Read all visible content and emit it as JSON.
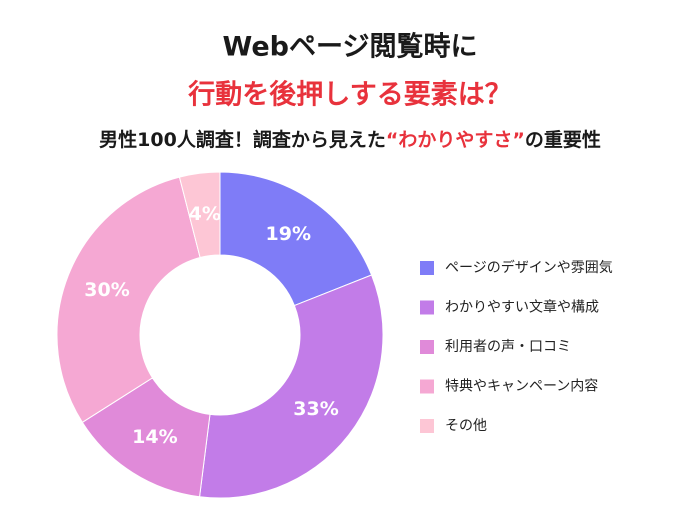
{
  "header": {
    "title_line1": "Webページ閲覧時に",
    "title_line2": "行動を後押しする要素は？",
    "subtitle_before": "男性100人調査！調査から見えた",
    "subtitle_highlight": "“わかりやすさ”",
    "subtitle_after": "の重要性"
  },
  "chart_data": {
    "type": "donut",
    "categories": [
      "ページのデザインや雰囲気",
      "わかりやすい文章や構成",
      "利用者の声・口コミ",
      "特典やキャンペーン内容",
      "その他"
    ],
    "values": [
      19,
      33,
      14,
      30,
      4
    ],
    "value_labels": [
      "19%",
      "33%",
      "14%",
      "30%",
      "4%"
    ],
    "colors": [
      "#7f7cf7",
      "#c27ce8",
      "#e08ad9",
      "#f5a8d3",
      "#fdc6d5"
    ]
  }
}
